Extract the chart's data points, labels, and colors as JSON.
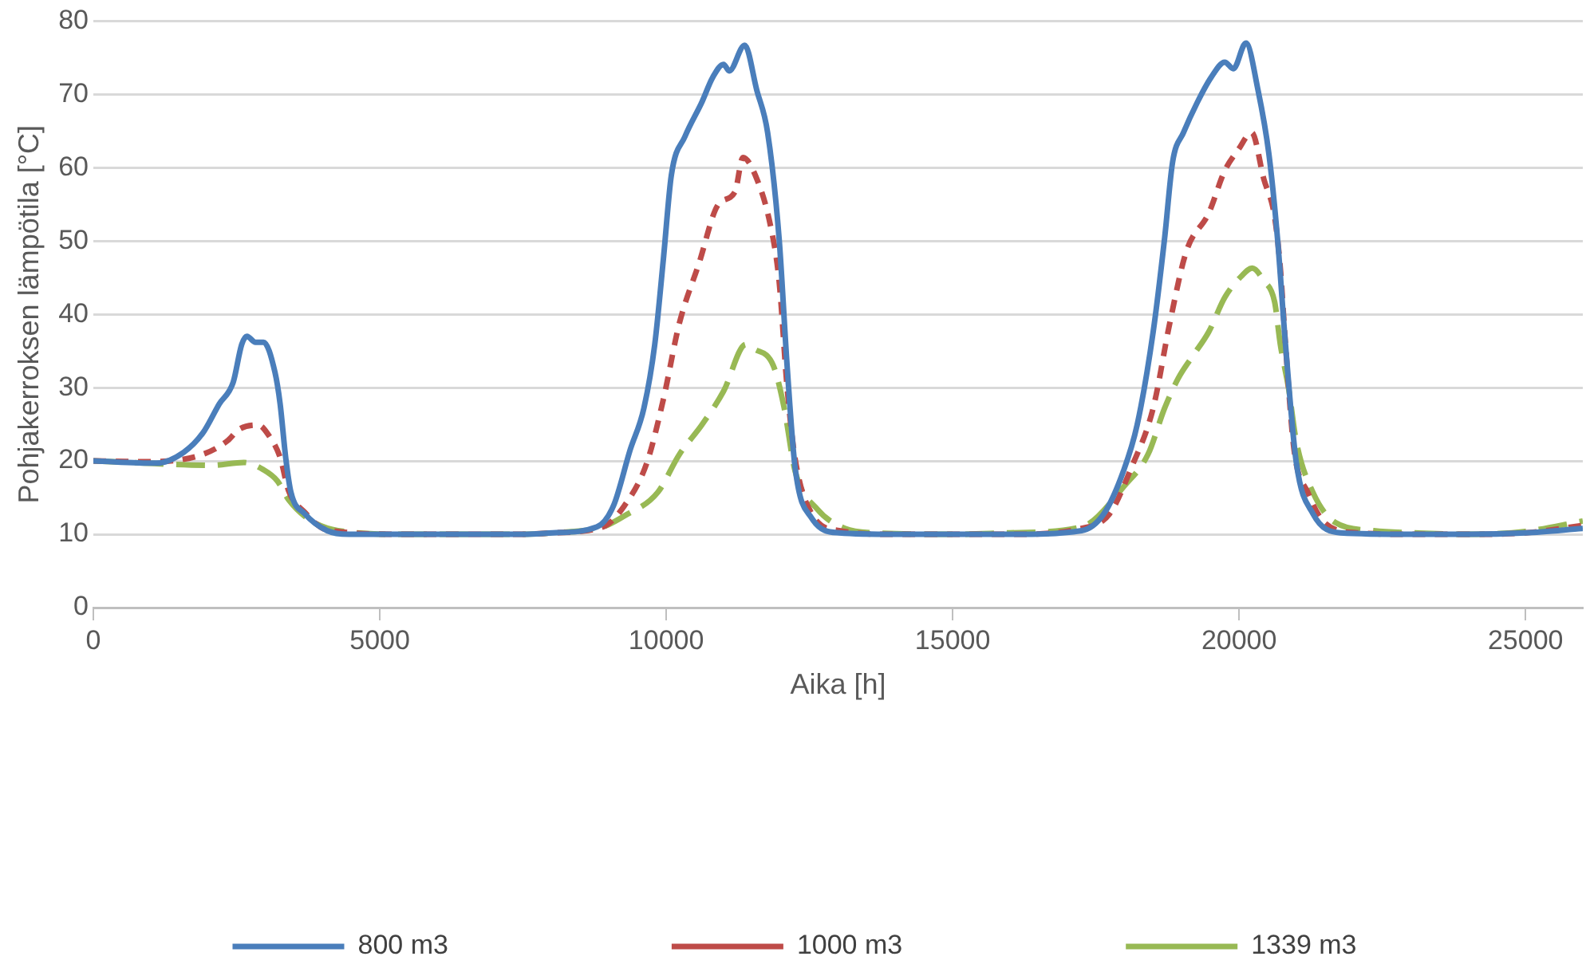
{
  "chart_data": {
    "type": "line",
    "xlabel": "Aika [h]",
    "ylabel": "Pohjakerroksen lämpötila [°C]",
    "xlim": [
      0,
      26000
    ],
    "xticks": [
      0,
      5000,
      10000,
      15000,
      20000,
      25000
    ],
    "ylim": [
      0,
      80
    ],
    "yticks": [
      0,
      10,
      20,
      30,
      40,
      50,
      60,
      70,
      80
    ],
    "grid": "y",
    "legend": "bottom",
    "marker": "none",
    "series": [
      {
        "name": "800 m3",
        "color": "#4a7ebb",
        "line_style": "solid",
        "x": [
          0,
          1100,
          1580,
          1910,
          2200,
          2440,
          2590,
          2680,
          2830,
          2970,
          3170,
          3260,
          3360,
          3450,
          3690,
          4080,
          4460,
          5500,
          6500,
          7500,
          8020,
          8790,
          9080,
          9370,
          9610,
          9800,
          9950,
          10090,
          10330,
          10620,
          10810,
          11000,
          11100,
          11370,
          11580,
          11770,
          11970,
          12110,
          12250,
          12540,
          13020,
          14000,
          15000,
          16000,
          17250,
          17640,
          17980,
          18220,
          18500,
          18700,
          18840,
          19030,
          19270,
          19510,
          19750,
          19900,
          20120,
          20330,
          20520,
          20670,
          20810,
          21000,
          21290,
          21770,
          23000,
          24000,
          25000,
          26000
        ],
        "values": [
          20,
          19.7,
          21.2,
          23.8,
          27.8,
          30.7,
          35.9,
          37,
          36.2,
          36.2,
          32.1,
          27.8,
          20.3,
          15.7,
          12.8,
          10.5,
          10,
          10,
          10,
          10,
          10.2,
          11,
          13.9,
          21.5,
          27.2,
          35.9,
          47.5,
          59,
          64.3,
          68.9,
          72.3,
          74.1,
          73.2,
          76.7,
          70.6,
          64.8,
          50.4,
          33,
          19.1,
          12.2,
          10.2,
          10,
          10,
          10,
          10.5,
          12.8,
          18.6,
          24.9,
          37.6,
          50.4,
          60.8,
          64.8,
          68.9,
          72.3,
          74.4,
          73.5,
          77,
          70.6,
          61.9,
          50.4,
          35.9,
          19.7,
          12.8,
          10.2,
          10,
          10,
          10.2,
          10.8
        ]
      },
      {
        "name": "1000 m3",
        "color": "#be4b48",
        "line_style": "dashed",
        "x": [
          0,
          900,
          1870,
          2350,
          2540,
          2880,
          3070,
          3260,
          3410,
          3690,
          4080,
          5500,
          6500,
          7500,
          8020,
          8890,
          9270,
          9660,
          9950,
          10230,
          10570,
          10910,
          11200,
          11340,
          11580,
          11820,
          11970,
          12110,
          12250,
          12540,
          13020,
          14000,
          15000,
          16000,
          17250,
          17740,
          18120,
          18500,
          18790,
          19080,
          19470,
          19750,
          19990,
          20220,
          20430,
          20620,
          20720,
          20810,
          20960,
          21200,
          21490,
          22060,
          23000,
          24000,
          25000,
          26000
        ],
        "values": [
          20,
          19.9,
          20.8,
          22.8,
          24.3,
          24.9,
          23.4,
          20.5,
          15.9,
          13,
          10.6,
          10,
          10,
          10,
          10.2,
          11,
          13.9,
          19.7,
          28.4,
          38.8,
          46.9,
          55,
          56.7,
          61.4,
          58.5,
          52.1,
          44.6,
          30.1,
          20.3,
          12.8,
          10.5,
          10,
          10,
          10,
          10.8,
          12.8,
          19.1,
          27.2,
          38.8,
          48.6,
          53.8,
          59.6,
          62.5,
          64.8,
          58.5,
          53.3,
          46.3,
          35.9,
          21.5,
          15.7,
          11.6,
          10.2,
          10,
          10,
          10.2,
          11.2
        ]
      },
      {
        "name": "1339 m3",
        "color": "#98b954",
        "line_style": "longdash",
        "x": [
          0,
          620,
          2060,
          2630,
          2970,
          3210,
          3410,
          3790,
          4270,
          5500,
          6500,
          7500,
          8020,
          8890,
          9270,
          9850,
          10230,
          10620,
          11000,
          11390,
          11530,
          11870,
          12060,
          12250,
          12640,
          13120,
          13600,
          15000,
          16000,
          17250,
          18020,
          18410,
          18700,
          18940,
          19180,
          19470,
          19750,
          20040,
          20230,
          20430,
          20620,
          20720,
          20860,
          21000,
          21290,
          21680,
          22350,
          23020,
          24000,
          25000,
          26000
        ],
        "values": [
          20,
          19.8,
          19.4,
          19.8,
          18.8,
          17.3,
          14.7,
          11.9,
          10.5,
          10,
          10,
          10,
          10.2,
          11,
          12.5,
          15.7,
          20.9,
          24.9,
          29.5,
          35.9,
          35.3,
          33,
          27.2,
          18.6,
          13.4,
          10.8,
          10.2,
          10,
          10.2,
          11,
          16.8,
          20.9,
          27.2,
          31.3,
          34.2,
          37.6,
          42.3,
          45.2,
          46.3,
          44.6,
          41.7,
          35.9,
          30.1,
          22.6,
          15.7,
          11.6,
          10.5,
          10.2,
          10,
          10.4,
          11.8
        ]
      }
    ]
  }
}
